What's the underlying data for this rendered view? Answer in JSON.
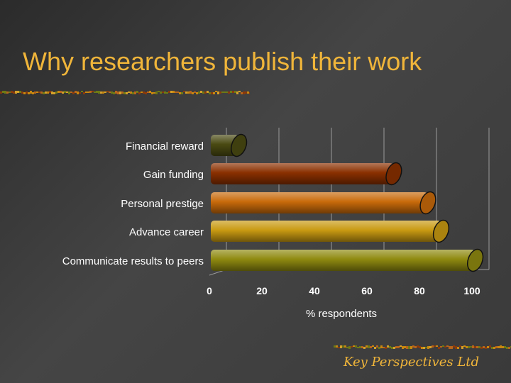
{
  "slide": {
    "title": "Why researchers publish their work",
    "footer": "Key Perspectives Ltd"
  },
  "chart_data": {
    "type": "bar",
    "orientation": "horizontal",
    "style": "3d-cylinder",
    "categories": [
      "Financial reward",
      "Gain funding",
      "Personal prestige",
      "Advance career",
      "Communicate results to peers"
    ],
    "values": [
      8,
      67,
      80,
      85,
      98
    ],
    "bar_colors": [
      "#4a4a12",
      "#8a3000",
      "#c86a0a",
      "#c99a12",
      "#8f8a10"
    ],
    "xlabel": "% respondents",
    "ylabel": "",
    "xlim": [
      0,
      100
    ],
    "xticks": [
      0,
      20,
      40,
      60,
      80,
      100
    ],
    "grid": "vertical",
    "legend": "none"
  },
  "colors": {
    "title": "#f0b53a",
    "tick_text": "#ffffff",
    "grid": "#9a9a9a",
    "rule_palette": [
      "#8b3a0a",
      "#c8870f",
      "#6e7a14",
      "#b8651b",
      "#d4a02a"
    ]
  }
}
